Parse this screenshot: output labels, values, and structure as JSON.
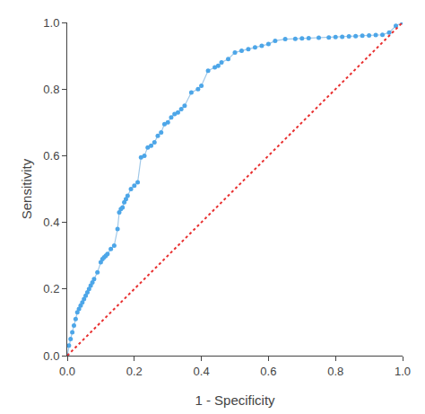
{
  "chart_data": {
    "type": "line",
    "xlabel": "1 - Specificity",
    "ylabel": "Sensitivity",
    "xlim": [
      0.0,
      1.0
    ],
    "ylim": [
      0.0,
      1.0
    ],
    "xticks": [
      {
        "value": 0.0,
        "label": "0.0"
      },
      0.2,
      0.4,
      0.6,
      0.8,
      {
        "value": 1.0,
        "label": "1.0"
      }
    ],
    "yticks": [
      {
        "value": 0.0,
        "label": "0.0"
      },
      0.2,
      0.4,
      0.6,
      0.8,
      {
        "value": 1.0,
        "label": "1.0"
      }
    ],
    "grid": false,
    "series": [
      {
        "type": "line",
        "color": "#a0c8e8",
        "x": [
          0.0,
          0.005,
          0.01,
          0.015,
          0.02,
          0.025,
          0.03,
          0.035,
          0.04,
          0.045,
          0.05,
          0.055,
          0.06,
          0.065,
          0.07,
          0.075,
          0.08,
          0.09,
          0.1,
          0.105,
          0.11,
          0.115,
          0.12,
          0.13,
          0.14,
          0.15,
          0.155,
          0.16,
          0.165,
          0.17,
          0.175,
          0.18,
          0.19,
          0.2,
          0.21,
          0.22,
          0.23,
          0.24,
          0.25,
          0.26,
          0.27,
          0.28,
          0.29,
          0.3,
          0.31,
          0.32,
          0.33,
          0.34,
          0.35,
          0.37,
          0.39,
          0.4,
          0.42,
          0.44,
          0.45,
          0.46,
          0.48,
          0.5,
          0.52,
          0.54,
          0.56,
          0.58,
          0.6,
          0.62,
          0.65,
          0.68,
          0.7,
          0.72,
          0.75,
          0.78,
          0.8,
          0.82,
          0.84,
          0.86,
          0.88,
          0.9,
          0.92,
          0.94,
          0.96,
          0.98,
          1.0
        ],
        "values": [
          0.0,
          0.03,
          0.05,
          0.07,
          0.09,
          0.11,
          0.13,
          0.14,
          0.15,
          0.16,
          0.17,
          0.18,
          0.19,
          0.2,
          0.21,
          0.22,
          0.23,
          0.25,
          0.28,
          0.29,
          0.295,
          0.3,
          0.305,
          0.32,
          0.33,
          0.38,
          0.43,
          0.44,
          0.445,
          0.46,
          0.47,
          0.48,
          0.5,
          0.51,
          0.52,
          0.595,
          0.6,
          0.625,
          0.63,
          0.64,
          0.66,
          0.67,
          0.695,
          0.7,
          0.715,
          0.725,
          0.73,
          0.74,
          0.75,
          0.79,
          0.8,
          0.81,
          0.855,
          0.865,
          0.87,
          0.88,
          0.89,
          0.91,
          0.915,
          0.92,
          0.925,
          0.93,
          0.935,
          0.945,
          0.95,
          0.951,
          0.952,
          0.953,
          0.954,
          0.955,
          0.956,
          0.957,
          0.958,
          0.959,
          0.96,
          0.961,
          0.962,
          0.963,
          0.97,
          0.99,
          1.0
        ]
      },
      {
        "type": "scatter",
        "color": "#4da6e8",
        "marker": "circle",
        "x": [
          0.0,
          0.005,
          0.01,
          0.015,
          0.02,
          0.025,
          0.03,
          0.035,
          0.04,
          0.045,
          0.05,
          0.055,
          0.06,
          0.065,
          0.07,
          0.075,
          0.08,
          0.09,
          0.1,
          0.105,
          0.11,
          0.115,
          0.12,
          0.13,
          0.14,
          0.15,
          0.155,
          0.16,
          0.165,
          0.17,
          0.175,
          0.18,
          0.19,
          0.2,
          0.21,
          0.22,
          0.23,
          0.24,
          0.25,
          0.26,
          0.27,
          0.28,
          0.29,
          0.3,
          0.31,
          0.32,
          0.33,
          0.34,
          0.35,
          0.37,
          0.39,
          0.4,
          0.42,
          0.44,
          0.45,
          0.46,
          0.48,
          0.5,
          0.52,
          0.54,
          0.56,
          0.58,
          0.6,
          0.62,
          0.65,
          0.68,
          0.7,
          0.72,
          0.75,
          0.78,
          0.8,
          0.82,
          0.84,
          0.86,
          0.88,
          0.9,
          0.92,
          0.94,
          0.96,
          0.98,
          1.0
        ],
        "values": [
          0.0,
          0.03,
          0.05,
          0.07,
          0.09,
          0.11,
          0.13,
          0.14,
          0.15,
          0.16,
          0.17,
          0.18,
          0.19,
          0.2,
          0.21,
          0.22,
          0.23,
          0.25,
          0.28,
          0.29,
          0.295,
          0.3,
          0.305,
          0.32,
          0.33,
          0.38,
          0.43,
          0.44,
          0.445,
          0.46,
          0.47,
          0.48,
          0.5,
          0.51,
          0.52,
          0.595,
          0.6,
          0.625,
          0.63,
          0.64,
          0.66,
          0.67,
          0.695,
          0.7,
          0.715,
          0.725,
          0.73,
          0.74,
          0.75,
          0.79,
          0.8,
          0.81,
          0.855,
          0.865,
          0.87,
          0.88,
          0.89,
          0.91,
          0.915,
          0.92,
          0.925,
          0.93,
          0.935,
          0.945,
          0.95,
          0.951,
          0.952,
          0.953,
          0.954,
          0.955,
          0.956,
          0.957,
          0.958,
          0.959,
          0.96,
          0.961,
          0.962,
          0.963,
          0.97,
          0.99,
          1.0
        ]
      },
      {
        "type": "line",
        "color": "#e83030",
        "line_style": "dotted",
        "x": [
          0,
          1
        ],
        "values": [
          0,
          1
        ]
      }
    ]
  }
}
